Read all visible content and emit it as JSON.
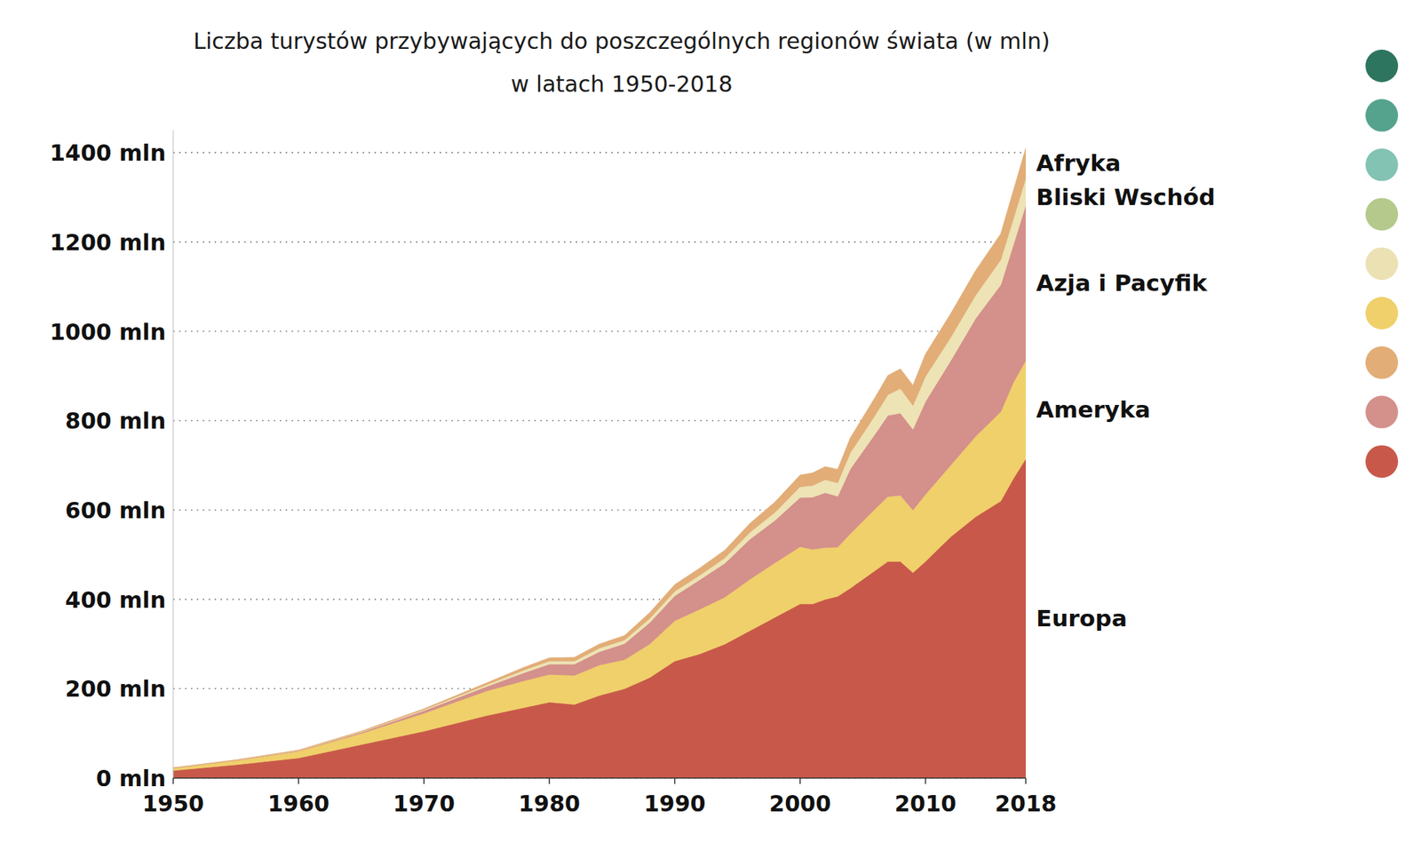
{
  "chart_data": {
    "type": "area",
    "title": "Liczba turystów przybywających do poszczególnych regionów świata (w mln)",
    "subtitle": "w latach 1950-2018",
    "stacked": true,
    "grid": true,
    "x": [
      1950,
      1955,
      1960,
      1965,
      1970,
      1975,
      1978,
      1980,
      1982,
      1984,
      1986,
      1988,
      1990,
      1992,
      1994,
      1996,
      1998,
      2000,
      2001,
      2002,
      2003,
      2004,
      2006,
      2007,
      2008,
      2009,
      2010,
      2012,
      2014,
      2016,
      2017,
      2018
    ],
    "xlim": [
      1950,
      2018
    ],
    "xticks": [
      1950,
      1960,
      1970,
      1980,
      1990,
      2000,
      2010,
      2018
    ],
    "ylim": [
      0,
      1450
    ],
    "yticks": [
      {
        "value": 0,
        "label": "0 mln"
      },
      {
        "value": 200,
        "label": "200 mln"
      },
      {
        "value": 400,
        "label": "400 mln"
      },
      {
        "value": 600,
        "label": "600 mln"
      },
      {
        "value": 800,
        "label": "800 mln"
      },
      {
        "value": 1000,
        "label": "1000 mln"
      },
      {
        "value": 1200,
        "label": "1200 mln"
      },
      {
        "value": 1400,
        "label": "1400 mln"
      }
    ],
    "series": [
      {
        "name": "Europa",
        "color": "#c8594a",
        "values": [
          17,
          30,
          45,
          75,
          105,
          140,
          158,
          170,
          165,
          185,
          200,
          225,
          262,
          278,
          300,
          330,
          360,
          390,
          390,
          400,
          407,
          425,
          465,
          485,
          485,
          460,
          485,
          540,
          585,
          620,
          670,
          715
        ]
      },
      {
        "name": "Ameryka",
        "color": "#f0d06a",
        "values": [
          5,
          9,
          15,
          25,
          40,
          55,
          60,
          62,
          65,
          68,
          65,
          75,
          90,
          100,
          105,
          115,
          122,
          128,
          122,
          116,
          110,
          122,
          138,
          145,
          148,
          140,
          150,
          160,
          180,
          200,
          215,
          220
        ]
      },
      {
        "name": "Azja i Pacyfik",
        "color": "#d4908a",
        "values": [
          0.3,
          0.6,
          1,
          2.5,
          6,
          10,
          18,
          23,
          25,
          30,
          36,
          48,
          56,
          66,
          76,
          90,
          95,
          110,
          117,
          123,
          114,
          145,
          168,
          182,
          184,
          181,
          208,
          234,
          264,
          284,
          308,
          348
        ]
      },
      {
        "name": "Bliski Wschód",
        "color": "#ede3b5",
        "values": [
          0.2,
          0.4,
          0.6,
          1,
          2,
          4,
          6,
          7,
          7,
          8,
          8,
          9,
          10,
          10,
          12,
          15,
          18,
          24,
          26,
          29,
          30,
          36,
          42,
          46,
          55,
          53,
          56,
          52,
          52,
          56,
          58,
          60
        ]
      },
      {
        "name": "Afryka",
        "color": "#e2ad77",
        "values": [
          0.5,
          0.6,
          0.8,
          1.5,
          2,
          4,
          6,
          7,
          8,
          9,
          10,
          13,
          15,
          16,
          17,
          20,
          23,
          26,
          28,
          29,
          30,
          33,
          40,
          43,
          44,
          45,
          50,
          53,
          55,
          58,
          63,
          67
        ]
      }
    ]
  }
}
